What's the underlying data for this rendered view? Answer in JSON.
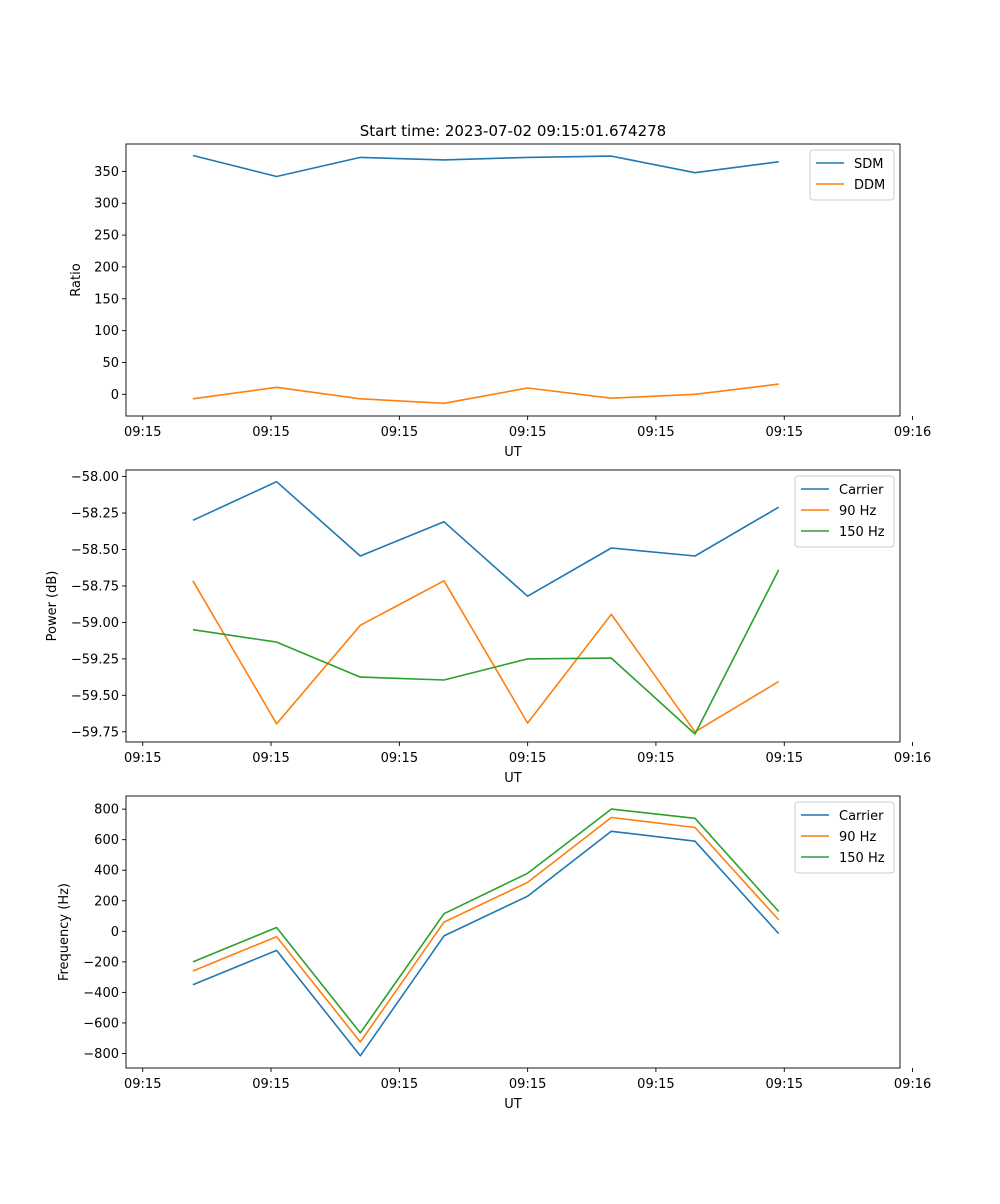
{
  "figure": {
    "suptitle": "Start time: 2023-07-02 09:15:01.674278"
  },
  "chart_data": [
    {
      "type": "line",
      "title": "Start time: 2023-07-02 09:15:01.674278",
      "xlabel": "UT",
      "ylabel": "Ratio",
      "x": [
        1,
        2,
        3,
        4,
        5,
        6,
        7,
        8
      ],
      "xlim": [
        0.2,
        9.45
      ],
      "xticks": [
        {
          "v": 0.4,
          "label": "09:15"
        },
        {
          "v": 1.933,
          "label": "09:15"
        },
        {
          "v": 3.467,
          "label": "09:15"
        },
        {
          "v": 5.0,
          "label": "09:15"
        },
        {
          "v": 6.533,
          "label": "09:15"
        },
        {
          "v": 8.067,
          "label": "09:15"
        },
        {
          "v": 9.6,
          "label": "09:16"
        }
      ],
      "ylim": [
        -34,
        393
      ],
      "yticks": [
        0,
        50,
        100,
        150,
        200,
        250,
        300,
        350
      ],
      "ytick_labels": [
        "0",
        "50",
        "100",
        "150",
        "200",
        "250",
        "300",
        "350"
      ],
      "grid": false,
      "legend": "top-right",
      "series": [
        {
          "name": "SDM",
          "color": "#1f77b4",
          "values": [
            375,
            342,
            372,
            368,
            372,
            374,
            348,
            365
          ]
        },
        {
          "name": "DDM",
          "color": "#ff7f0e",
          "values": [
            -7,
            11,
            -7,
            -14,
            10,
            -6,
            0,
            16
          ]
        }
      ]
    },
    {
      "type": "line",
      "xlabel": "UT",
      "ylabel": "Power (dB)",
      "x": [
        1,
        2,
        3,
        4,
        5,
        6,
        7,
        8
      ],
      "xlim": [
        0.2,
        9.45
      ],
      "xticks": [
        {
          "v": 0.4,
          "label": "09:15"
        },
        {
          "v": 1.933,
          "label": "09:15"
        },
        {
          "v": 3.467,
          "label": "09:15"
        },
        {
          "v": 5.0,
          "label": "09:15"
        },
        {
          "v": 6.533,
          "label": "09:15"
        },
        {
          "v": 8.067,
          "label": "09:15"
        },
        {
          "v": 9.6,
          "label": "09:16"
        }
      ],
      "ylim": [
        -59.82,
        -57.955
      ],
      "yticks": [
        -59.75,
        -59.5,
        -59.25,
        -59.0,
        -58.75,
        -58.5,
        -58.25,
        -58.0
      ],
      "ytick_labels": [
        "−59.75",
        "−59.50",
        "−59.25",
        "−59.00",
        "−58.75",
        "−58.50",
        "−58.25",
        "−58.00"
      ],
      "grid": false,
      "legend": "top-right",
      "series": [
        {
          "name": "Carrier",
          "color": "#1f77b4",
          "values": [
            -58.3,
            -58.035,
            -58.545,
            -58.31,
            -58.82,
            -58.49,
            -58.545,
            -58.21
          ]
        },
        {
          "name": "90 Hz",
          "color": "#ff7f0e",
          "values": [
            -58.715,
            -59.695,
            -59.02,
            -58.715,
            -59.69,
            -58.945,
            -59.75,
            -59.405
          ]
        },
        {
          "name": "150 Hz",
          "color": "#2ca02c",
          "values": [
            -59.05,
            -59.135,
            -59.375,
            -59.395,
            -59.25,
            -59.245,
            -59.765,
            -58.64
          ]
        }
      ]
    },
    {
      "type": "line",
      "xlabel": "UT",
      "ylabel": "Frequency (Hz)",
      "x": [
        1,
        2,
        3,
        4,
        5,
        6,
        7,
        8
      ],
      "xlim": [
        0.2,
        9.45
      ],
      "xticks": [
        {
          "v": 0.4,
          "label": "09:15"
        },
        {
          "v": 1.933,
          "label": "09:15"
        },
        {
          "v": 3.467,
          "label": "09:15"
        },
        {
          "v": 5.0,
          "label": "09:15"
        },
        {
          "v": 6.533,
          "label": "09:15"
        },
        {
          "v": 8.067,
          "label": "09:15"
        },
        {
          "v": 9.6,
          "label": "09:16"
        }
      ],
      "ylim": [
        -895,
        886
      ],
      "yticks": [
        -800,
        -600,
        -400,
        -200,
        0,
        200,
        400,
        600,
        800
      ],
      "ytick_labels": [
        "−800",
        "−600",
        "−400",
        "−200",
        "0",
        "200",
        "400",
        "600",
        "800"
      ],
      "grid": false,
      "legend": "top-right",
      "series": [
        {
          "name": "Carrier",
          "color": "#1f77b4",
          "values": [
            -350,
            -125,
            -815,
            -30,
            230,
            655,
            590,
            -15
          ]
        },
        {
          "name": "90 Hz",
          "color": "#ff7f0e",
          "values": [
            -260,
            -35,
            -725,
            60,
            320,
            745,
            680,
            75
          ]
        },
        {
          "name": "150 Hz",
          "color": "#2ca02c",
          "values": [
            -200,
            25,
            -665,
            115,
            380,
            800,
            740,
            130
          ]
        }
      ]
    }
  ]
}
